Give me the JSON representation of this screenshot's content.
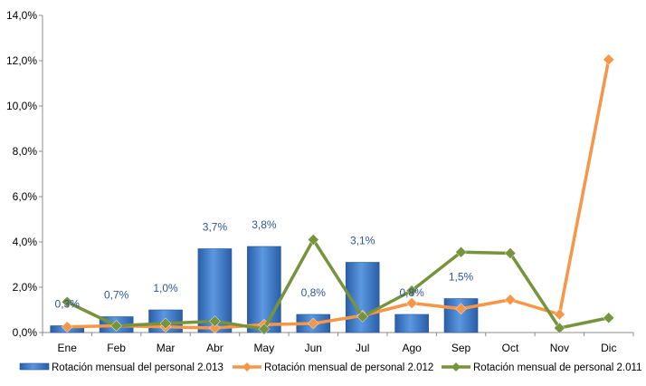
{
  "chart_data": {
    "type": "bar",
    "title": "",
    "xlabel": "",
    "ylabel": "",
    "ylim": [
      0,
      14
    ],
    "y_ticks": [
      "0,0%",
      "2,0%",
      "4,0%",
      "6,0%",
      "8,0%",
      "10,0%",
      "12,0%",
      "14,0%"
    ],
    "categories": [
      "Ene",
      "Feb",
      "Mar",
      "Abr",
      "May",
      "Jun",
      "Jul",
      "Ago",
      "Sep",
      "Oct",
      "Nov",
      "Dic"
    ],
    "grid": false,
    "legend_position": "bottom",
    "series": [
      {
        "name": "Rotación mensual del personal 2.013",
        "kind": "bar",
        "color": "#3c78c8",
        "values": [
          0.3,
          0.7,
          1.0,
          3.7,
          3.8,
          0.8,
          3.1,
          0.8,
          1.5,
          null,
          null,
          null
        ],
        "labels": [
          "0,3%",
          "0,7%",
          "1,0%",
          "3,7%",
          "3,8%",
          "0,8%",
          "3,1%",
          "0,8%",
          "1,5%",
          "",
          "",
          ""
        ]
      },
      {
        "name": "Rotación mensual de personal 2.012",
        "kind": "line",
        "color": "#f79646",
        "values": [
          0.25,
          0.3,
          0.25,
          0.2,
          0.35,
          0.4,
          0.75,
          1.3,
          1.05,
          1.45,
          0.8,
          12.05
        ]
      },
      {
        "name": "Rotación mensual de personal 2.011",
        "kind": "line",
        "color": "#77933c",
        "values": [
          1.35,
          0.3,
          0.4,
          0.5,
          0.15,
          4.1,
          0.7,
          1.85,
          3.55,
          3.5,
          0.2,
          0.65
        ]
      }
    ]
  }
}
